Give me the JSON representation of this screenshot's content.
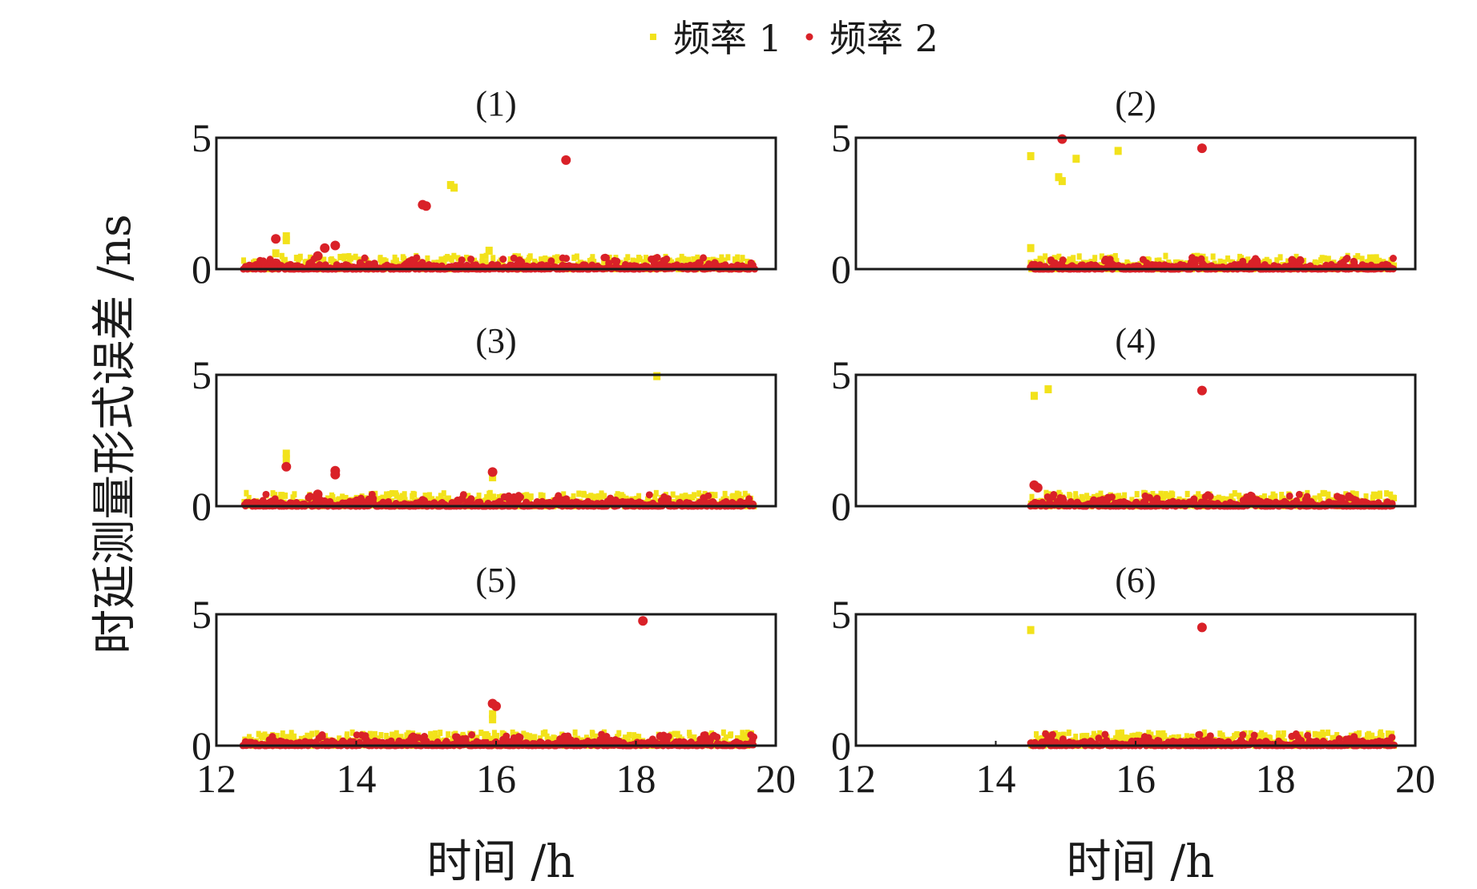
{
  "legend": {
    "items": [
      {
        "label": "频率 1",
        "color": "#f2e21b"
      },
      {
        "label": "频率 2",
        "color": "#d92128"
      }
    ]
  },
  "ylabel": "时延测量形式误差 /ns",
  "xlabels": [
    "时间 /h",
    "时间 /h"
  ],
  "chart_data": [
    {
      "type": "scatter",
      "title": "(1)",
      "xlim": [
        12,
        20
      ],
      "ylim": [
        0,
        5
      ],
      "xticks": [
        "12",
        "14",
        "16",
        "18",
        "20"
      ],
      "yticks": [
        "0",
        "5"
      ],
      "data_start": 12.4,
      "data_end": 19.7,
      "series": [
        {
          "name": "频率 1",
          "points": [
            [
              12.85,
              0.6
            ],
            [
              13.0,
              1.25
            ],
            [
              13.0,
              1.1
            ],
            [
              15.35,
              3.2
            ],
            [
              15.4,
              3.1
            ],
            [
              15.9,
              0.7
            ]
          ]
        },
        {
          "name": "频率 2",
          "points": [
            [
              12.85,
              1.15
            ],
            [
              13.45,
              0.5
            ],
            [
              13.55,
              0.8
            ],
            [
              13.7,
              0.9
            ],
            [
              14.95,
              2.45
            ],
            [
              15.0,
              2.4
            ],
            [
              17.0,
              4.15
            ]
          ]
        }
      ]
    },
    {
      "type": "scatter",
      "title": "(2)",
      "xlim": [
        12,
        20
      ],
      "ylim": [
        0,
        5
      ],
      "xticks": [
        "12",
        "14",
        "16",
        "18",
        "20"
      ],
      "yticks": [
        "0",
        "5"
      ],
      "data_start": 14.5,
      "data_end": 19.7,
      "series": [
        {
          "name": "频率 1",
          "points": [
            [
              14.5,
              4.3
            ],
            [
              14.9,
              3.5
            ],
            [
              14.95,
              3.35
            ],
            [
              15.15,
              4.2
            ],
            [
              15.75,
              4.5
            ],
            [
              14.5,
              0.8
            ]
          ]
        },
        {
          "name": "频率 2",
          "points": [
            [
              14.95,
              4.95
            ],
            [
              16.95,
              4.6
            ]
          ]
        }
      ]
    },
    {
      "type": "scatter",
      "title": "(3)",
      "xlim": [
        12,
        20
      ],
      "ylim": [
        0,
        5
      ],
      "xticks": [
        "12",
        "14",
        "16",
        "18",
        "20"
      ],
      "yticks": [
        "0",
        "5"
      ],
      "data_start": 12.4,
      "data_end": 19.7,
      "series": [
        {
          "name": "频率 1",
          "points": [
            [
              13.0,
              2.0
            ],
            [
              13.0,
              1.8
            ],
            [
              15.95,
              1.1
            ],
            [
              18.3,
              4.95
            ]
          ]
        },
        {
          "name": "频率 2",
          "points": [
            [
              13.0,
              1.5
            ],
            [
              13.45,
              0.45
            ],
            [
              13.7,
              1.35
            ],
            [
              13.7,
              1.2
            ],
            [
              15.95,
              1.3
            ]
          ]
        }
      ]
    },
    {
      "type": "scatter",
      "title": "(4)",
      "xlim": [
        12,
        20
      ],
      "ylim": [
        0,
        5
      ],
      "xticks": [
        "12",
        "14",
        "16",
        "18",
        "20"
      ],
      "yticks": [
        "0",
        "5"
      ],
      "data_start": 14.5,
      "data_end": 19.7,
      "series": [
        {
          "name": "频率 1",
          "points": [
            [
              14.55,
              4.2
            ],
            [
              14.75,
              4.45
            ]
          ]
        },
        {
          "name": "频率 2",
          "points": [
            [
              14.55,
              0.8
            ],
            [
              14.6,
              0.7
            ],
            [
              16.95,
              4.4
            ]
          ]
        }
      ]
    },
    {
      "type": "scatter",
      "title": "(5)",
      "xlim": [
        12,
        20
      ],
      "ylim": [
        0,
        5
      ],
      "xticks": [
        "12",
        "14",
        "16",
        "18",
        "20"
      ],
      "yticks": [
        "0",
        "5"
      ],
      "data_start": 12.4,
      "data_end": 19.7,
      "series": [
        {
          "name": "频率 1",
          "points": [
            [
              15.95,
              1.2
            ],
            [
              15.95,
              1.0
            ],
            [
              15.85,
              0.4
            ]
          ]
        },
        {
          "name": "频率 2",
          "points": [
            [
              15.95,
              1.6
            ],
            [
              16.0,
              1.5
            ],
            [
              18.1,
              4.75
            ]
          ]
        }
      ]
    },
    {
      "type": "scatter",
      "title": "(6)",
      "xlim": [
        12,
        20
      ],
      "ylim": [
        0,
        5
      ],
      "xticks": [
        "12",
        "14",
        "16",
        "18",
        "20"
      ],
      "yticks": [
        "0",
        "5"
      ],
      "data_start": 14.5,
      "data_end": 19.7,
      "series": [
        {
          "name": "频率 1",
          "points": [
            [
              14.5,
              4.4
            ]
          ]
        },
        {
          "name": "频率 2",
          "points": [
            [
              16.95,
              4.5
            ]
          ]
        }
      ]
    }
  ]
}
